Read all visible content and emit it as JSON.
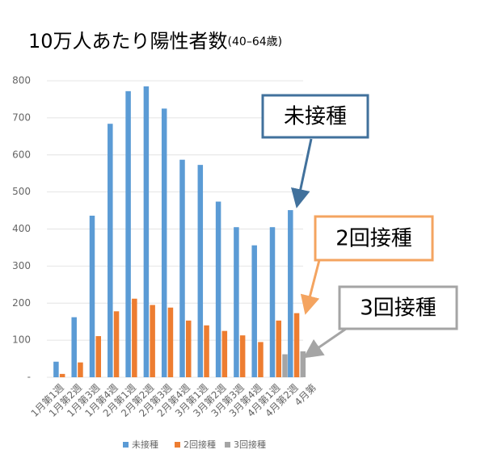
{
  "chart_data": {
    "type": "bar",
    "title": "10万人あたり陽性者数",
    "subtitle": "(40–64歳)",
    "categories": [
      "1月第1週",
      "1月第2週",
      "1月第3週",
      "1月第4週",
      "2月第1週",
      "2月第2週",
      "2月第3週",
      "2月第4週",
      "3月第1週",
      "3月第2週",
      "3月第3週",
      "3月第4週",
      "4月第1週",
      "4月第2週",
      "4月第"
    ],
    "series": [
      {
        "name": "未接種",
        "color": "#5b9bd5",
        "values": [
          42,
          162,
          436,
          684,
          772,
          785,
          725,
          587,
          573,
          474,
          405,
          356,
          405,
          451,
          null
        ]
      },
      {
        "name": "2回接種",
        "color": "#ed7d31",
        "values": [
          9,
          40,
          111,
          178,
          212,
          195,
          188,
          153,
          140,
          125,
          113,
          95,
          153,
          173,
          null
        ]
      },
      {
        "name": "3回接種",
        "color": "#a5a5a5",
        "values": [
          null,
          null,
          null,
          null,
          null,
          null,
          null,
          null,
          null,
          null,
          null,
          null,
          62,
          70,
          null
        ]
      }
    ],
    "ylim": [
      0,
      800
    ],
    "yticks": [
      {
        "value": 0,
        "label": "-"
      },
      100,
      200,
      300,
      400,
      500,
      600,
      700,
      800
    ],
    "grid": true,
    "legend": "bottom",
    "annotations": [
      {
        "text": "未接種",
        "color": "#41719c"
      },
      {
        "text": "2回接種",
        "color": "#f4a460"
      },
      {
        "text": "3回接種",
        "color": "#a5a5a5"
      }
    ]
  }
}
